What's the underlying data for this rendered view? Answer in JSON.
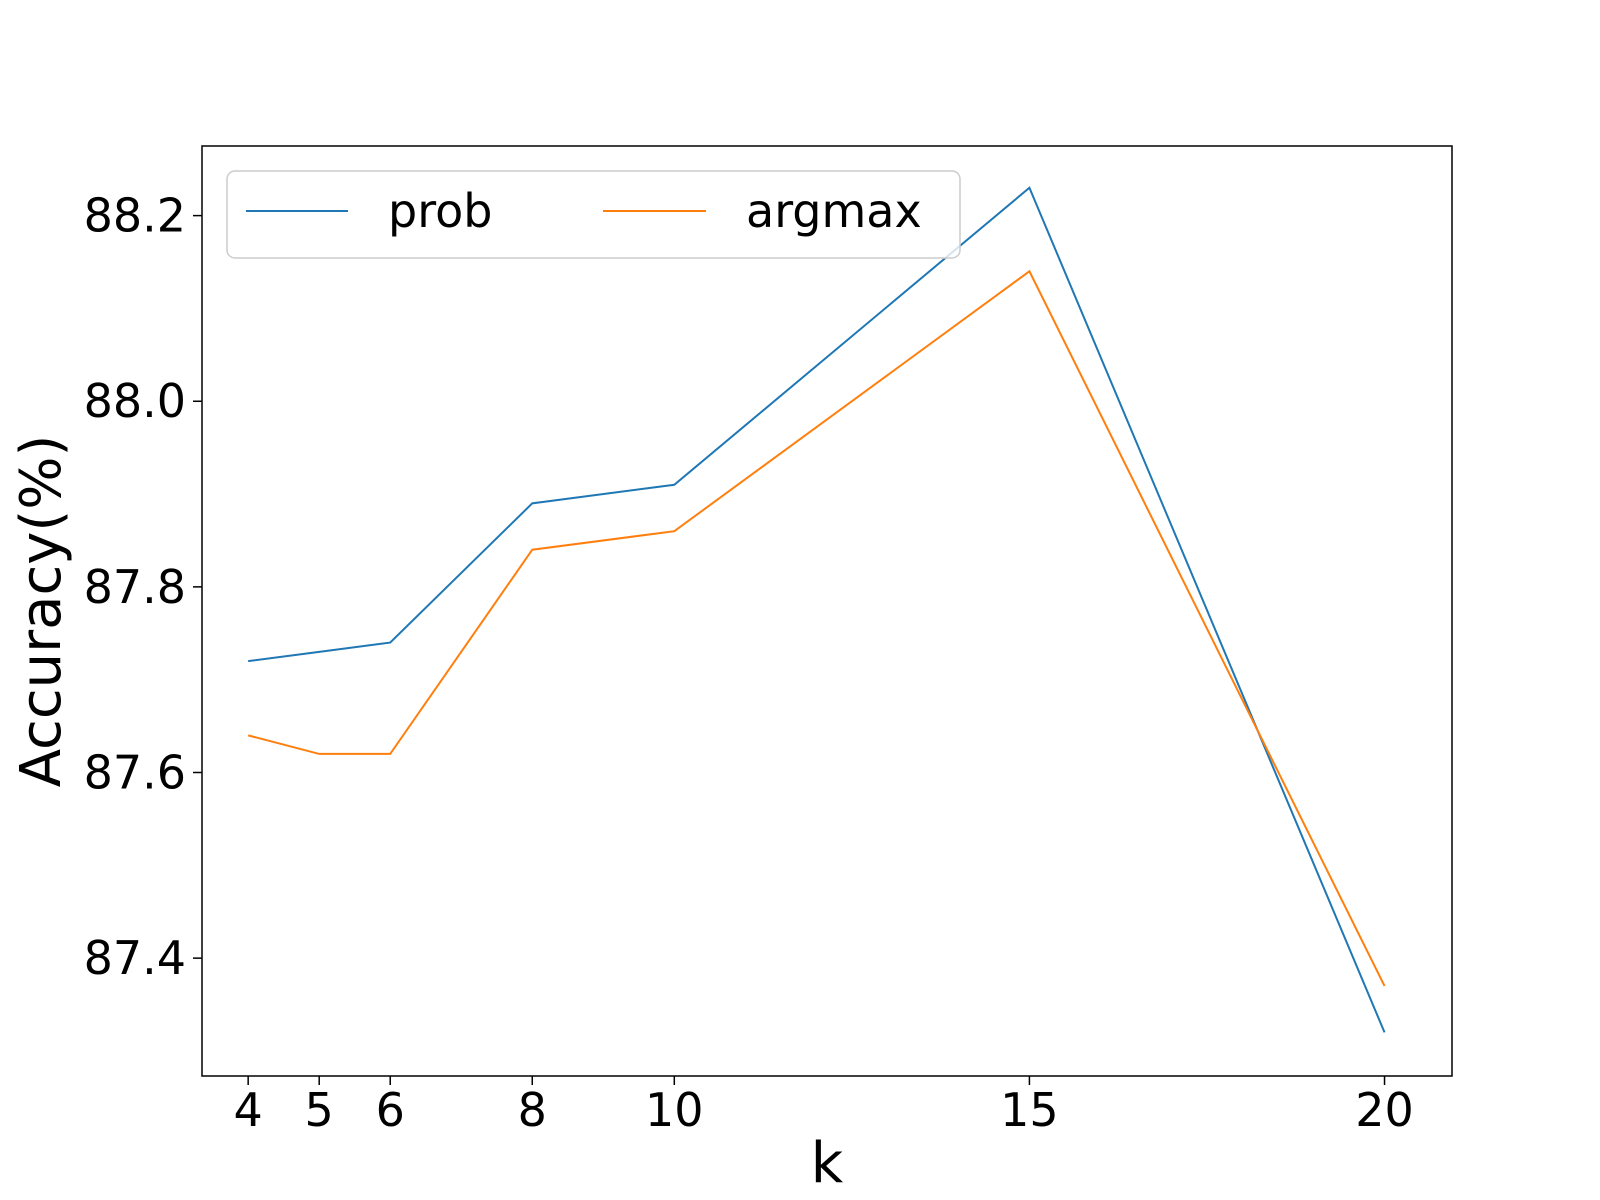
{
  "chart_data": {
    "type": "line",
    "xlabel": "k",
    "ylabel": "Accuracy(%)",
    "x": [
      4,
      5,
      6,
      8,
      10,
      15,
      20
    ],
    "x_ticks": [
      4,
      5,
      6,
      8,
      10,
      15,
      20
    ],
    "x_tick_labels": [
      "4",
      "5",
      "6",
      "8",
      "10",
      "15",
      "20"
    ],
    "y_ticks": [
      87.4,
      87.6,
      87.8,
      88.0,
      88.2
    ],
    "y_tick_labels": [
      "87.4",
      "87.6",
      "87.8",
      "88.0",
      "88.2"
    ],
    "xlim": [
      3.35,
      20.95
    ],
    "ylim": [
      87.273,
      88.275
    ],
    "grid": false,
    "legend": {
      "placement": "top-left",
      "columns": 2
    },
    "series": [
      {
        "name": "prob",
        "color": "#1f77b4",
        "values": [
          87.72,
          87.73,
          87.74,
          87.89,
          87.91,
          88.23,
          87.32
        ]
      },
      {
        "name": "argmax",
        "color": "#ff7f0e",
        "values": [
          87.64,
          87.62,
          87.62,
          87.84,
          87.86,
          88.14,
          87.37
        ]
      }
    ]
  }
}
